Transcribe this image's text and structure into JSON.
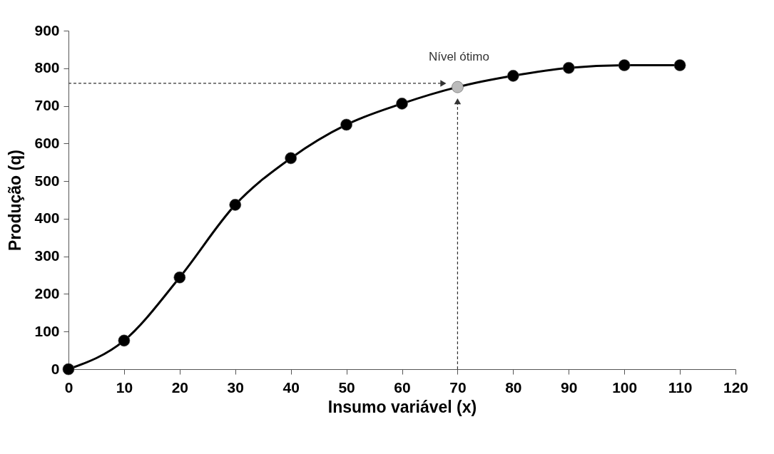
{
  "chart_data": {
    "type": "line",
    "xlabel": "Insumo variável (x)",
    "ylabel": "Produção (q)",
    "x": [
      0,
      10,
      20,
      30,
      40,
      50,
      60,
      70,
      80,
      90,
      100,
      110
    ],
    "series": [
      {
        "color": "#000000",
        "colors": [
          "#000000",
          "#000000",
          "#000000",
          "#000000",
          "#000000",
          "#000000",
          "#000000",
          "#bbbbbb",
          "#000000",
          "#000000",
          "#000000",
          "#000000"
        ],
        "values": [
          0,
          76,
          244,
          437,
          561,
          650,
          706,
          750,
          780,
          801,
          808,
          808
        ]
      }
    ],
    "xlim": [
      0,
      120
    ],
    "xticks": [
      0,
      10,
      20,
      30,
      40,
      50,
      60,
      70,
      80,
      90,
      100,
      110,
      120
    ],
    "ylim": [
      0,
      900
    ],
    "yticks": [
      0,
      100,
      200,
      300,
      400,
      500,
      600,
      700,
      800,
      900
    ],
    "annotations": [
      {
        "text": "Nível ótimo",
        "x": 70,
        "y": 750
      }
    ],
    "marker": "circle",
    "line_style": "solid"
  }
}
